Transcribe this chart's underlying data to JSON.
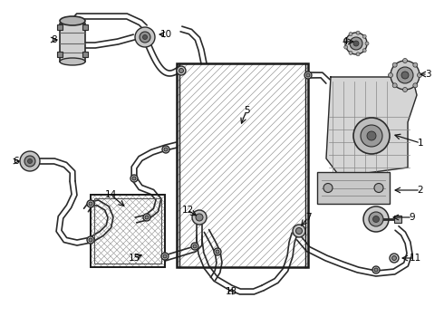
{
  "bg_color": "#ffffff",
  "line_color": "#2a2a2a",
  "gray_fill": "#b8b8b8",
  "dark_gray": "#555555",
  "light_gray": "#dddddd",
  "hatch_gray": "#888888",
  "figsize": [
    4.9,
    3.6
  ],
  "dpi": 100,
  "xlim": [
    0,
    490
  ],
  "ylim": [
    0,
    360
  ]
}
